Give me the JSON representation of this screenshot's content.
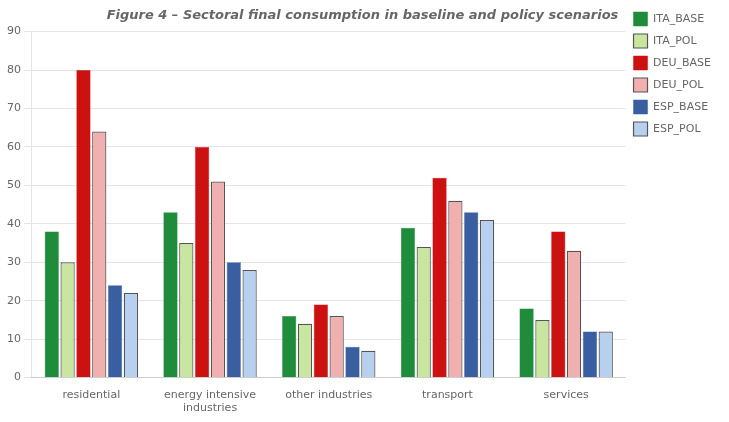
{
  "chart_data": {
    "type": "bar",
    "title": "Figure 4 – Sectoral final consumption in baseline and policy scenarios",
    "categories": [
      "residential",
      "energy intensive\nindustries",
      "other industries",
      "transport",
      "services"
    ],
    "series": [
      {
        "name": "ITA_BASE",
        "color": "#1e8c3a",
        "line_style": "solid",
        "values": [
          38,
          43,
          16,
          39,
          18
        ]
      },
      {
        "name": "ITA_POL",
        "color": "#c8e6a0",
        "line_style": "dashed",
        "values": [
          30,
          35,
          14,
          34,
          15
        ]
      },
      {
        "name": "DEU_BASE",
        "color": "#cc1111",
        "line_style": "solid",
        "values": [
          80,
          60,
          19,
          52,
          38
        ]
      },
      {
        "name": "DEU_POL",
        "color": "#f0b0b0",
        "line_style": "dashed",
        "values": [
          64,
          51,
          16,
          46,
          33
        ]
      },
      {
        "name": "ESP_BASE",
        "color": "#3a5fa0",
        "line_style": "solid",
        "values": [
          24,
          30,
          8,
          43,
          12
        ]
      },
      {
        "name": "ESP_POL",
        "color": "#b8d0f0",
        "line_style": "dashed",
        "values": [
          22,
          28,
          7,
          41,
          12
        ]
      }
    ],
    "ylim": [
      0,
      90
    ],
    "yticks": [
      0,
      10,
      20,
      30,
      40,
      50,
      60,
      70,
      80,
      90
    ],
    "grid": true,
    "legend": "upper right"
  }
}
